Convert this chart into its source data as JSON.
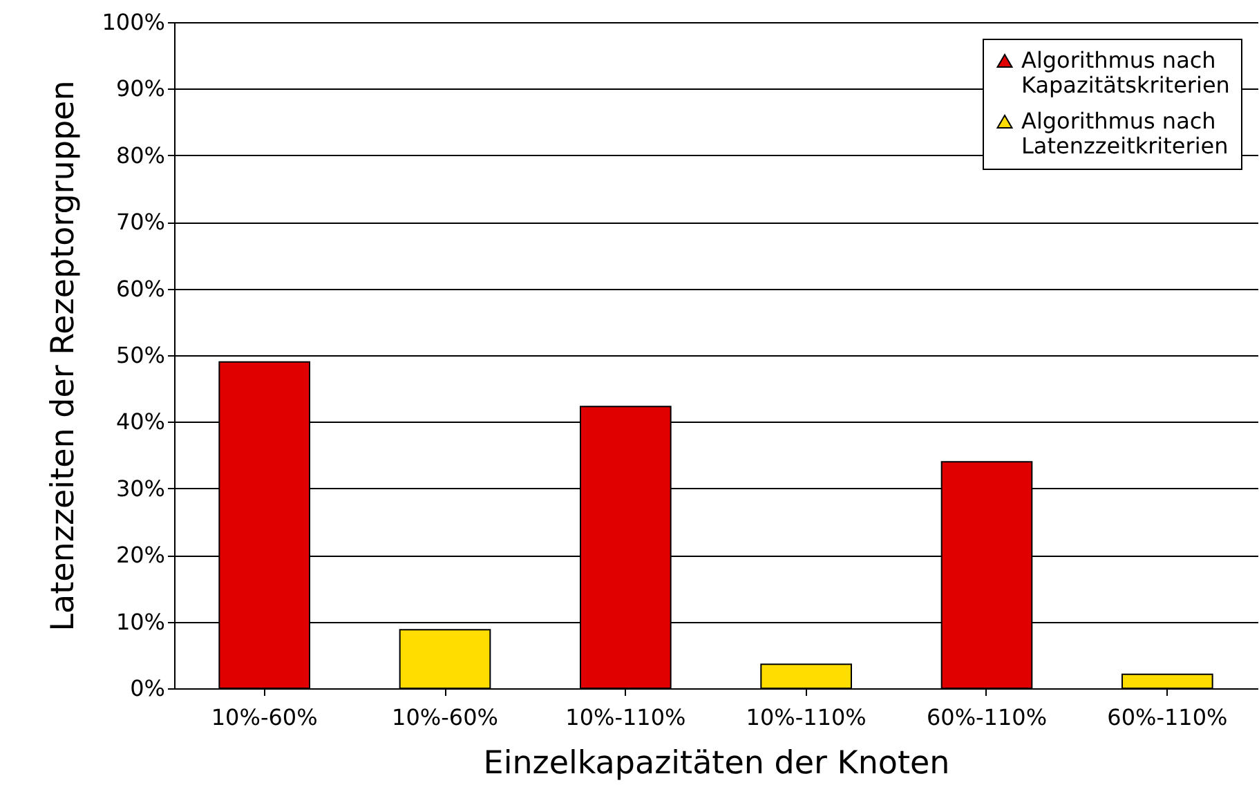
{
  "chart_data": {
    "type": "bar",
    "xlabel": "Einzelkapazitäten der Knoten",
    "ylabel": "Latenzzeiten der Rezeptorgruppen",
    "categories": [
      "10%-60%",
      "10%-60%",
      "10%-110%",
      "10%-110%",
      "60%-110%",
      "60%-110%"
    ],
    "series": [
      {
        "name": "Algorithmus nach Kapazitätskriterien",
        "color": "#e00000",
        "values": [
          49,
          null,
          42.3,
          null,
          34,
          null
        ]
      },
      {
        "name": "Algorithmus nach Latenzzeitkriterien",
        "color": "#ffdd00",
        "values": [
          null,
          8.8,
          null,
          3.6,
          null,
          2.1
        ]
      }
    ],
    "ylim": [
      0,
      100
    ],
    "yticks": [
      {
        "value": 0,
        "label": "0%"
      },
      {
        "value": 10,
        "label": "10%"
      },
      {
        "value": 20,
        "label": "20%"
      },
      {
        "value": 30,
        "label": "30%"
      },
      {
        "value": 40,
        "label": "40%"
      },
      {
        "value": 50,
        "label": "50%"
      },
      {
        "value": 60,
        "label": "60%"
      },
      {
        "value": 70,
        "label": "70%"
      },
      {
        "value": 80,
        "label": "80%"
      },
      {
        "value": 90,
        "label": "90%"
      },
      {
        "value": 100,
        "label": "100%"
      }
    ],
    "grid": "y",
    "legend": "top right"
  }
}
